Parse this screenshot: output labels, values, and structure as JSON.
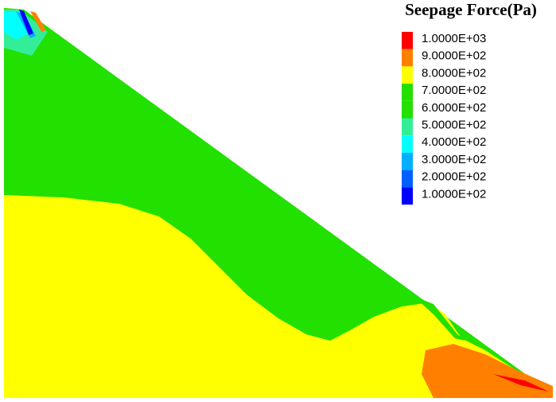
{
  "chart_data": {
    "type": "contour",
    "title": "Seepage Force(Pa)",
    "levels": [
      {
        "value": 1000,
        "label": "1.0000E+03",
        "color": "#ff0000"
      },
      {
        "value": 900,
        "label": "9.0000E+02",
        "color": "#ff8000"
      },
      {
        "value": 800,
        "label": "8.0000E+02",
        "color": "#ffff00"
      },
      {
        "value": 700,
        "label": "7.0000E+02",
        "color": "#22e000"
      },
      {
        "value": 600,
        "label": "6.0000E+02",
        "color": "#22e000"
      },
      {
        "value": 500,
        "label": "5.0000E+02",
        "color": "#33ee99"
      },
      {
        "value": 400,
        "label": "4.0000E+02",
        "color": "#00ffff"
      },
      {
        "value": 300,
        "label": "3.0000E+02",
        "color": "#00b0ff"
      },
      {
        "value": 200,
        "label": "2.0000E+02",
        "color": "#0060ff"
      },
      {
        "value": 100,
        "label": "1.0000E+02",
        "color": "#0000ff"
      }
    ]
  }
}
